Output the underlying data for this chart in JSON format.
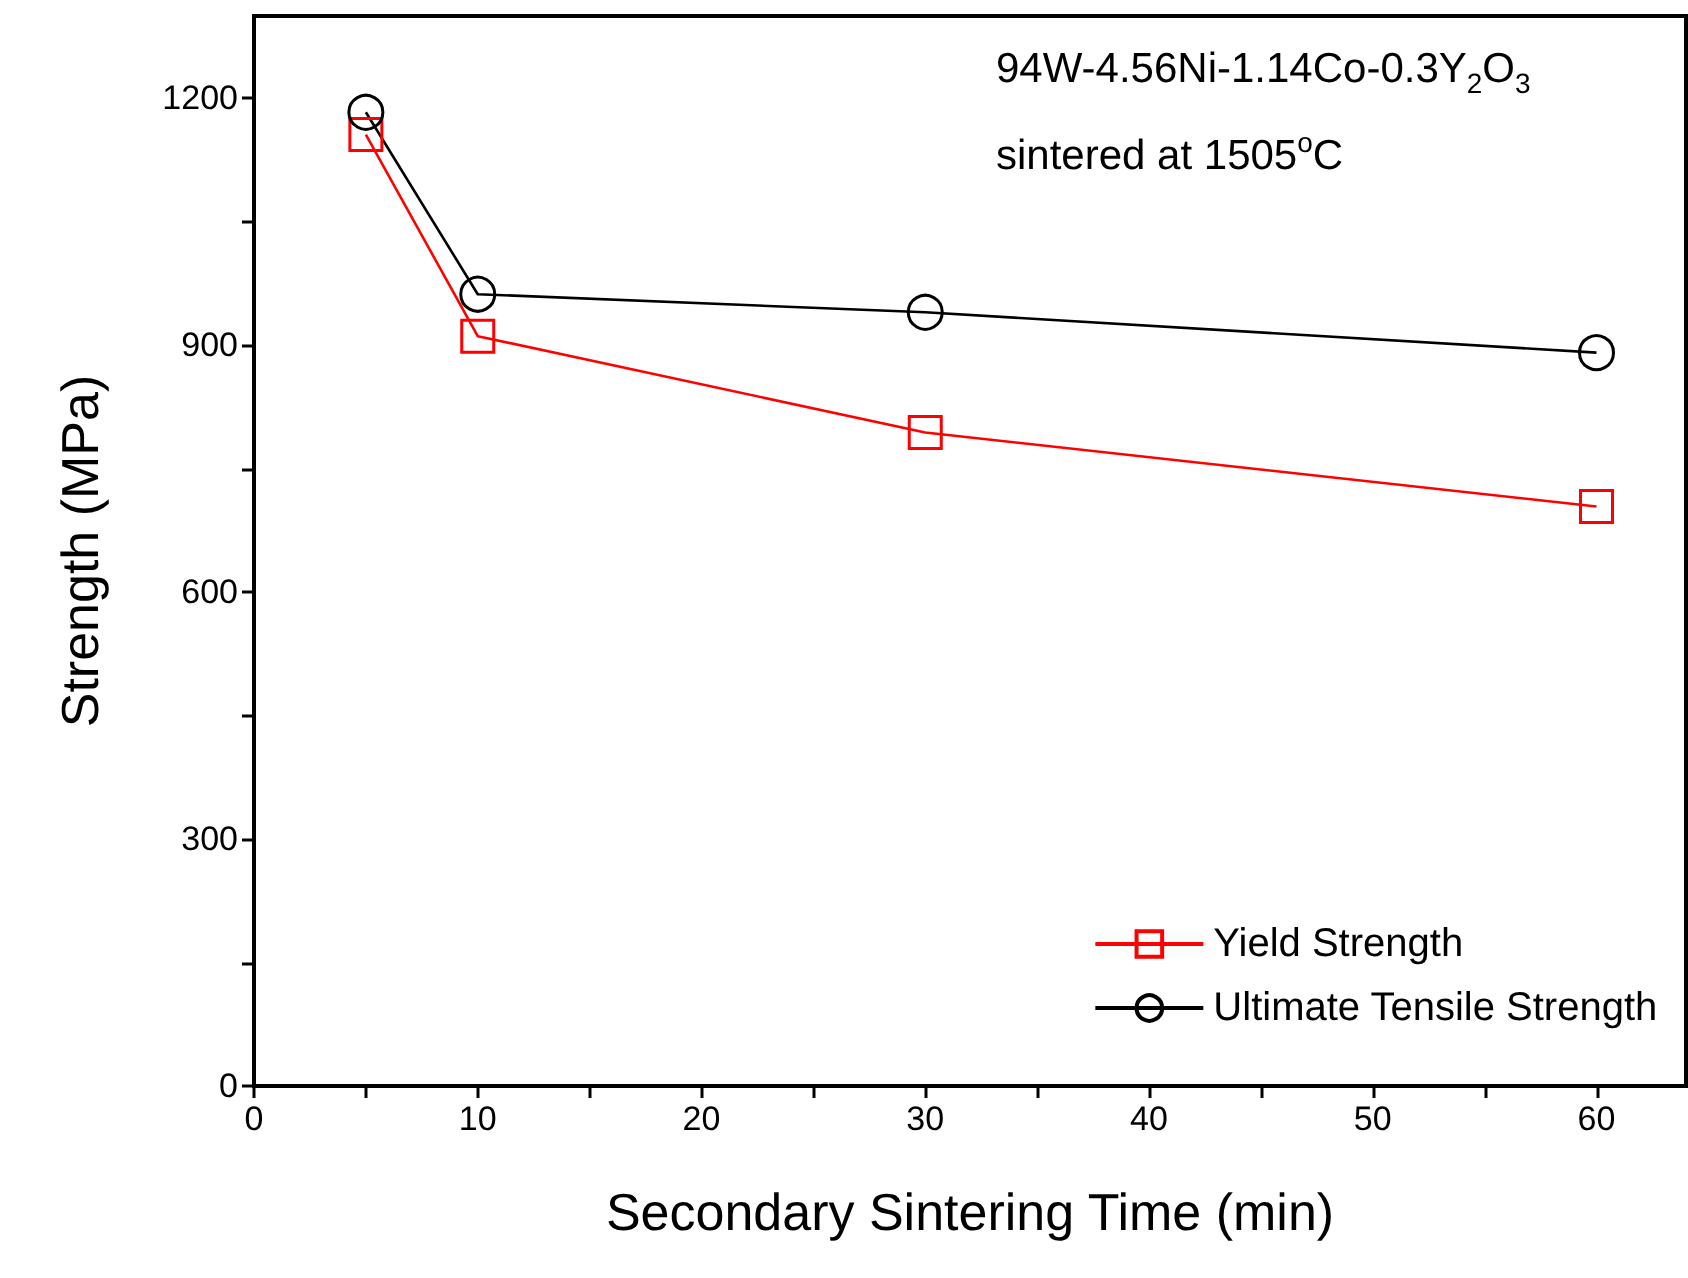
{
  "chart_data": {
    "type": "line",
    "xlabel": "Secondary Sintering Time (min)",
    "ylabel": "Strength (MPa)",
    "x": [
      5,
      10,
      30,
      60
    ],
    "series": [
      {
        "name": "Yield Strength",
        "color": "#ff0000",
        "marker": "square",
        "values": [
          1156,
          911,
          794,
          704
        ]
      },
      {
        "name": "Ultimate Tensile Strength",
        "color": "#000000",
        "marker": "circle",
        "values": [
          1183,
          962,
          940,
          891
        ]
      }
    ],
    "xlim": [
      0,
      64
    ],
    "xticks": [
      0,
      {
        "value": 5,
        "label": null
      },
      10,
      {
        "value": 15,
        "label": null
      },
      20,
      {
        "value": 25,
        "label": null
      },
      30,
      {
        "value": 35,
        "label": null
      },
      40,
      {
        "value": 45,
        "label": null
      },
      50,
      {
        "value": 55,
        "label": null
      },
      60
    ],
    "ylim": [
      0,
      1300
    ],
    "yticks": [
      0,
      {
        "value": 150,
        "label": null
      },
      300,
      {
        "value": 450,
        "label": null
      },
      600,
      {
        "value": 750,
        "label": null
      },
      900,
      {
        "value": 1050,
        "label": null
      },
      1200
    ],
    "annotations": [
      "94W-4.56Ni-1.14Co-0.3Y$_{2}$O$_{3}$",
      "sintered at 1505$^{o}$C"
    ],
    "grid": false,
    "legend": "bottom right",
    "line_style": "solid"
  }
}
